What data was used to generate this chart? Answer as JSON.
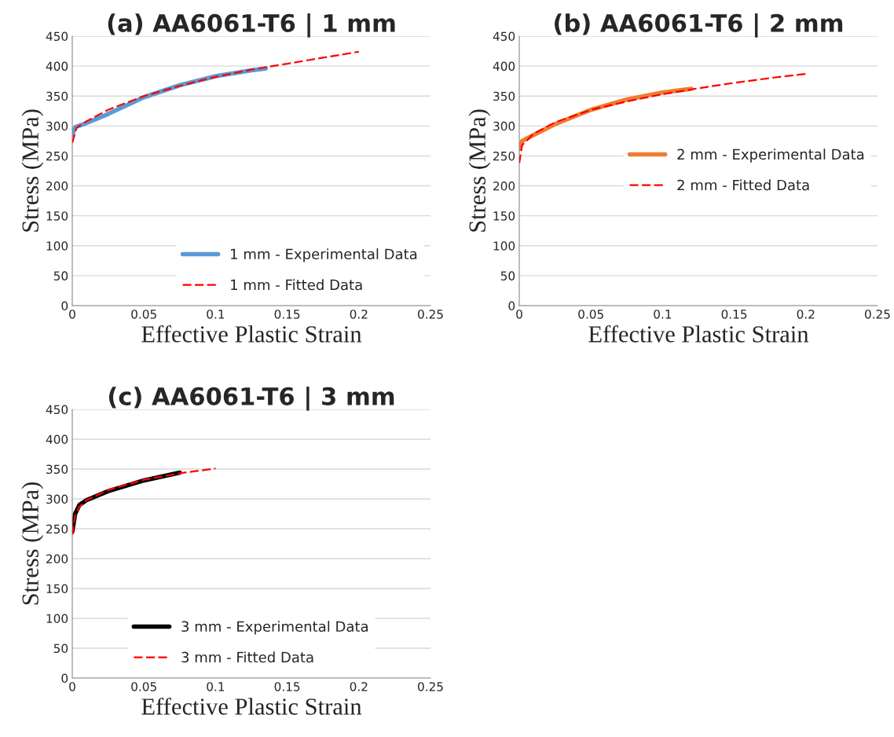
{
  "chart_data": [
    {
      "type": "line",
      "title": "(a) AA6061-T6 | 1 mm",
      "xlabel": "Effective Plastic Strain",
      "ylabel": "Stress (MPa)",
      "xlim": [
        0,
        0.25
      ],
      "xticks": [
        0,
        0.05,
        0.1,
        0.15,
        0.2,
        0.25
      ],
      "ylim": [
        0,
        450
      ],
      "yticks": [
        0,
        50,
        100,
        150,
        200,
        250,
        300,
        350,
        400,
        450
      ],
      "grid": "y",
      "legend": "bottom right",
      "series": [
        {
          "name": "1 mm - Experimental Data",
          "color": "#5b9bd5",
          "line_style": "solid",
          "x": [
            0,
            0.002,
            0.01,
            0.025,
            0.05,
            0.075,
            0.1,
            0.125,
            0.135
          ],
          "values": [
            285,
            298,
            305,
            320,
            348,
            368,
            383,
            393,
            396
          ]
        },
        {
          "name": "1 mm - Fitted Data",
          "color": "#ff0000",
          "line_style": "dashed",
          "x": [
            0,
            0.003,
            0.01,
            0.025,
            0.05,
            0.075,
            0.1,
            0.125,
            0.15,
            0.175,
            0.2
          ],
          "values": [
            272,
            297,
            308,
            327,
            350,
            367,
            382,
            394,
            404,
            414,
            424
          ]
        }
      ]
    },
    {
      "type": "line",
      "title": "(b) AA6061-T6 | 2 mm",
      "xlabel": "Effective Plastic Strain",
      "ylabel": "Stress (MPa)",
      "xlim": [
        0,
        0.25
      ],
      "xticks": [
        0,
        0.05,
        0.1,
        0.15,
        0.2,
        0.25
      ],
      "ylim": [
        0,
        450
      ],
      "yticks": [
        0,
        50,
        100,
        150,
        200,
        250,
        300,
        350,
        400,
        450
      ],
      "grid": "y",
      "legend": "right",
      "series": [
        {
          "name": "2 mm - Experimental Data",
          "color": "#ed7d31",
          "line_style": "solid",
          "x": [
            0,
            0.002,
            0.01,
            0.025,
            0.05,
            0.075,
            0.1,
            0.12
          ],
          "values": [
            262,
            275,
            285,
            303,
            327,
            344,
            356,
            362
          ]
        },
        {
          "name": "2 mm - Fitted Data",
          "color": "#ff0000",
          "line_style": "dashed",
          "x": [
            0,
            0.002,
            0.01,
            0.025,
            0.05,
            0.075,
            0.1,
            0.125,
            0.15,
            0.175,
            0.2
          ],
          "values": [
            238,
            268,
            287,
            306,
            327,
            341,
            353,
            363,
            372,
            380,
            387
          ]
        }
      ]
    },
    {
      "type": "line",
      "title": "(c) AA6061-T6 | 3 mm",
      "xlabel": "Effective Plastic Strain",
      "ylabel": "Stress (MPa)",
      "xlim": [
        0,
        0.25
      ],
      "xticks": [
        0,
        0.05,
        0.1,
        0.15,
        0.2,
        0.25
      ],
      "ylim": [
        0,
        450
      ],
      "yticks": [
        0,
        50,
        100,
        150,
        200,
        250,
        300,
        350,
        400,
        450
      ],
      "grid": "y",
      "legend": "bottom",
      "series": [
        {
          "name": "3 mm - Experimental Data",
          "color": "#000000",
          "line_style": "solid",
          "x": [
            0,
            0.002,
            0.005,
            0.01,
            0.025,
            0.05,
            0.075
          ],
          "values": [
            245,
            275,
            290,
            298,
            313,
            331,
            344
          ]
        },
        {
          "name": "3 mm - Fitted Data",
          "color": "#ff0000",
          "line_style": "dashed",
          "x": [
            0,
            0.002,
            0.005,
            0.01,
            0.025,
            0.05,
            0.075,
            0.1
          ],
          "values": [
            240,
            272,
            287,
            298,
            315,
            332,
            343,
            351
          ]
        }
      ]
    }
  ]
}
